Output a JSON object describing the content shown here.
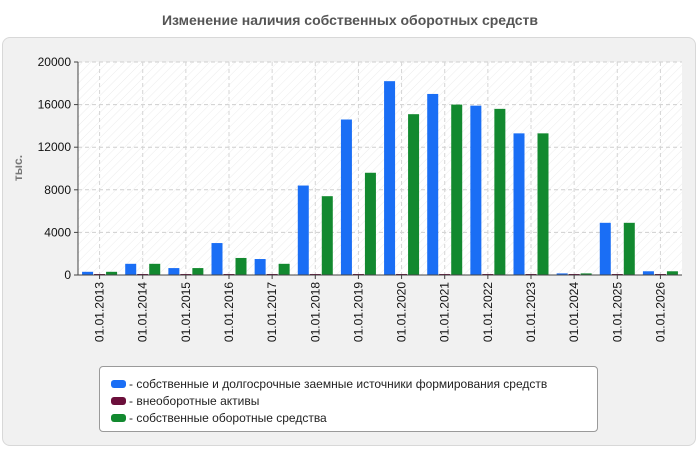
{
  "title": "Изменение наличия собственных оборотных средств",
  "chart_data": {
    "type": "bar",
    "title": "Изменение наличия собственных оборотных средств",
    "ylabel": "тыс.",
    "xlabel": "",
    "ylim": [
      0,
      20000
    ],
    "yticks": [
      0,
      4000,
      8000,
      12000,
      16000,
      20000
    ],
    "ytick_labels": [
      "0",
      "4000",
      "8000",
      "12000",
      "16000",
      "20000"
    ],
    "grid": true,
    "legend_position": "bottom",
    "categories": [
      "01.01.2013",
      "01.01.2014",
      "01.01.2015",
      "01.01.2016",
      "01.01.2017",
      "01.01.2018",
      "01.01.2019",
      "01.01.2020",
      "01.01.2021",
      "01.01.2022",
      "01.01.2023",
      "01.01.2024",
      "01.01.2025",
      "01.01.2026"
    ],
    "series": [
      {
        "name": "- собственные и долгосрочные заемные источники формирования средств",
        "color": "#1a6ef5",
        "values": [
          300,
          1050,
          650,
          3000,
          1500,
          8400,
          14600,
          18200,
          17000,
          15900,
          13300,
          150,
          4900,
          350
        ]
      },
      {
        "name": "- внеоборотные активы",
        "color": "#6b0f3b",
        "values": [
          40,
          40,
          40,
          40,
          40,
          40,
          40,
          40,
          40,
          40,
          40,
          40,
          40,
          40
        ]
      },
      {
        "name": "- собственные оборотные средства",
        "color": "#12892f",
        "values": [
          300,
          1050,
          650,
          1600,
          1050,
          7400,
          9600,
          15100,
          16000,
          15600,
          13300,
          150,
          4900,
          350
        ]
      }
    ]
  }
}
